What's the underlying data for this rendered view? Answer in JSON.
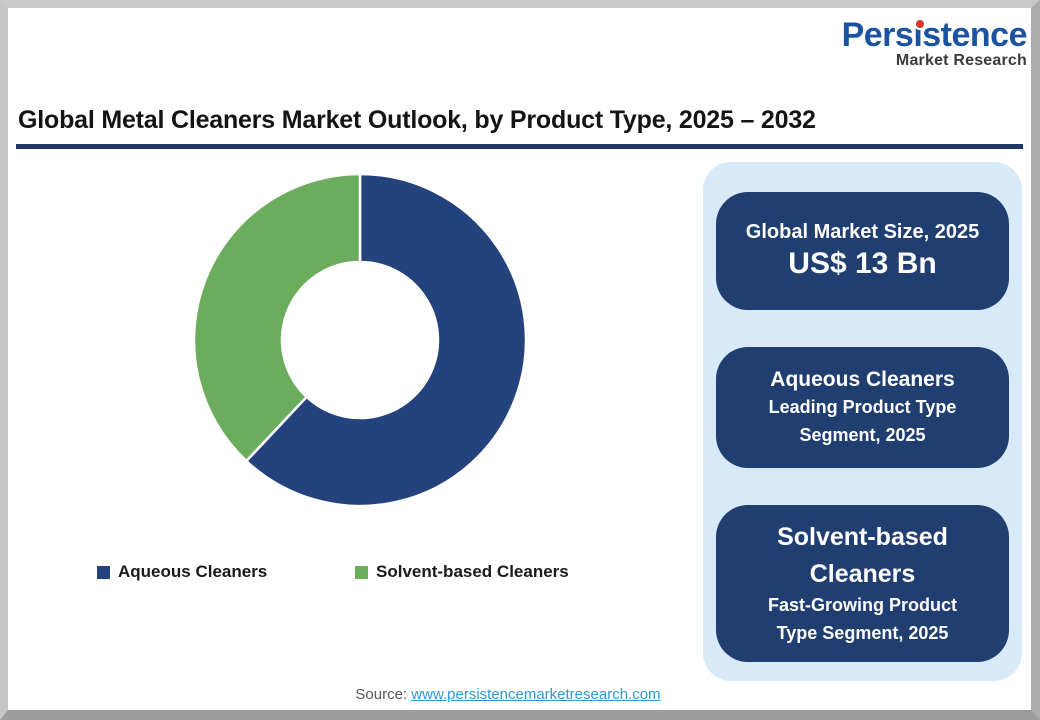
{
  "logo": {
    "name": "Persistence",
    "tagline": "Market Research",
    "brand_blue": "#1b53a0",
    "dot_red": "#d6362e"
  },
  "header": {
    "title": "Global Metal Cleaners Market Outlook, by Product Type, 2025 – 2032",
    "underline_color": "#1f3864"
  },
  "chart_data": {
    "type": "pie",
    "subtype": "donut",
    "categories": [
      "Aqueous Cleaners",
      "Solvent-based Cleaners"
    ],
    "values": [
      62,
      38
    ],
    "unit": "percent (estimated from arc angles; no data labels shown)",
    "colors": [
      "#24427b",
      "#6cac5d"
    ],
    "start_angle_deg": -90,
    "direction": "clockwise",
    "inner_radius_ratio": 0.47,
    "slice_gap_color": "#ffffff",
    "legend_position": "bottom",
    "title": ""
  },
  "panel": {
    "background": "#d8eaf8",
    "card_color": "#213e70",
    "boxes": [
      {
        "line1": "Global Market Size, 2025",
        "value": "US$ 13 Bn"
      },
      {
        "title": "Aqueous Cleaners",
        "subtitle": "Leading Product Type Segment, 2025"
      },
      {
        "title": "Solvent-based Cleaners",
        "subtitle": "Fast-Growing Product Type Segment, 2025"
      }
    ]
  },
  "footer": {
    "source_label": "Source:",
    "source_link": "www.persistencemarketresearch.com",
    "link_color": "#2d99d3"
  }
}
